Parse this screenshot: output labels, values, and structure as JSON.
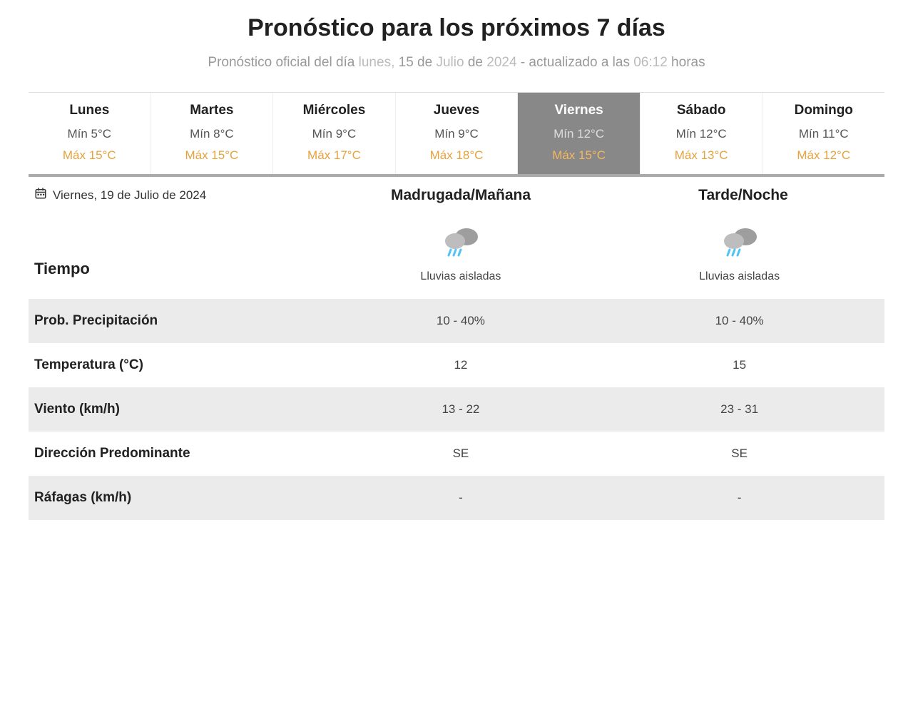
{
  "title": "Pronóstico para los próximos 7 días",
  "subtitle_prefix": "Pronóstico oficial del día ",
  "subtitle_date1": "lunes, ",
  "subtitle_date2": "15",
  "subtitle_date3": " de ",
  "subtitle_date4": "Julio ",
  "subtitle_date5": "de ",
  "subtitle_date6": "2024",
  "subtitle_mid": " - actualizado a las ",
  "subtitle_time": "06:12",
  "subtitle_suffix": " horas",
  "days": [
    {
      "name": "Lunes",
      "min": "Mín 5°C",
      "max": "Máx 15°C"
    },
    {
      "name": "Martes",
      "min": "Mín 8°C",
      "max": "Máx 15°C"
    },
    {
      "name": "Miércoles",
      "min": "Mín 9°C",
      "max": "Máx 17°C"
    },
    {
      "name": "Jueves",
      "min": "Mín 9°C",
      "max": "Máx 18°C"
    },
    {
      "name": "Viernes",
      "min": "Mín 12°C",
      "max": "Máx 15°C"
    },
    {
      "name": "Sábado",
      "min": "Mín 12°C",
      "max": "Máx 13°C"
    },
    {
      "name": "Domingo",
      "min": "Mín 11°C",
      "max": "Máx 12°C"
    }
  ],
  "activeIndex": 4,
  "selectedDate": "Viernes, 19 de Julio de 2024",
  "columns": {
    "morning": "Madrugada/Mañana",
    "evening": "Tarde/Noche"
  },
  "detail": {
    "tiempoLabel": "Tiempo",
    "morningDesc": "Lluvias aisladas",
    "eveningDesc": "Lluvias aisladas",
    "rows": [
      {
        "label": "Prob. Precipitación",
        "morning": "10 - 40%",
        "evening": "10 - 40%",
        "shade": true
      },
      {
        "label": "Temperatura (°C)",
        "morning": "12",
        "evening": "15",
        "shade": false
      },
      {
        "label": "Viento (km/h)",
        "morning": "13 - 22",
        "evening": "23 - 31",
        "shade": true
      },
      {
        "label": "Dirección Predominante",
        "morning": "SE",
        "evening": "SE",
        "shade": false
      },
      {
        "label": "Ráfagas (km/h)",
        "morning": "-",
        "evening": "-",
        "shade": true
      }
    ]
  },
  "colors": {
    "max": "#e6a23c",
    "activeBg": "#888888",
    "shade": "#ebebeb"
  }
}
